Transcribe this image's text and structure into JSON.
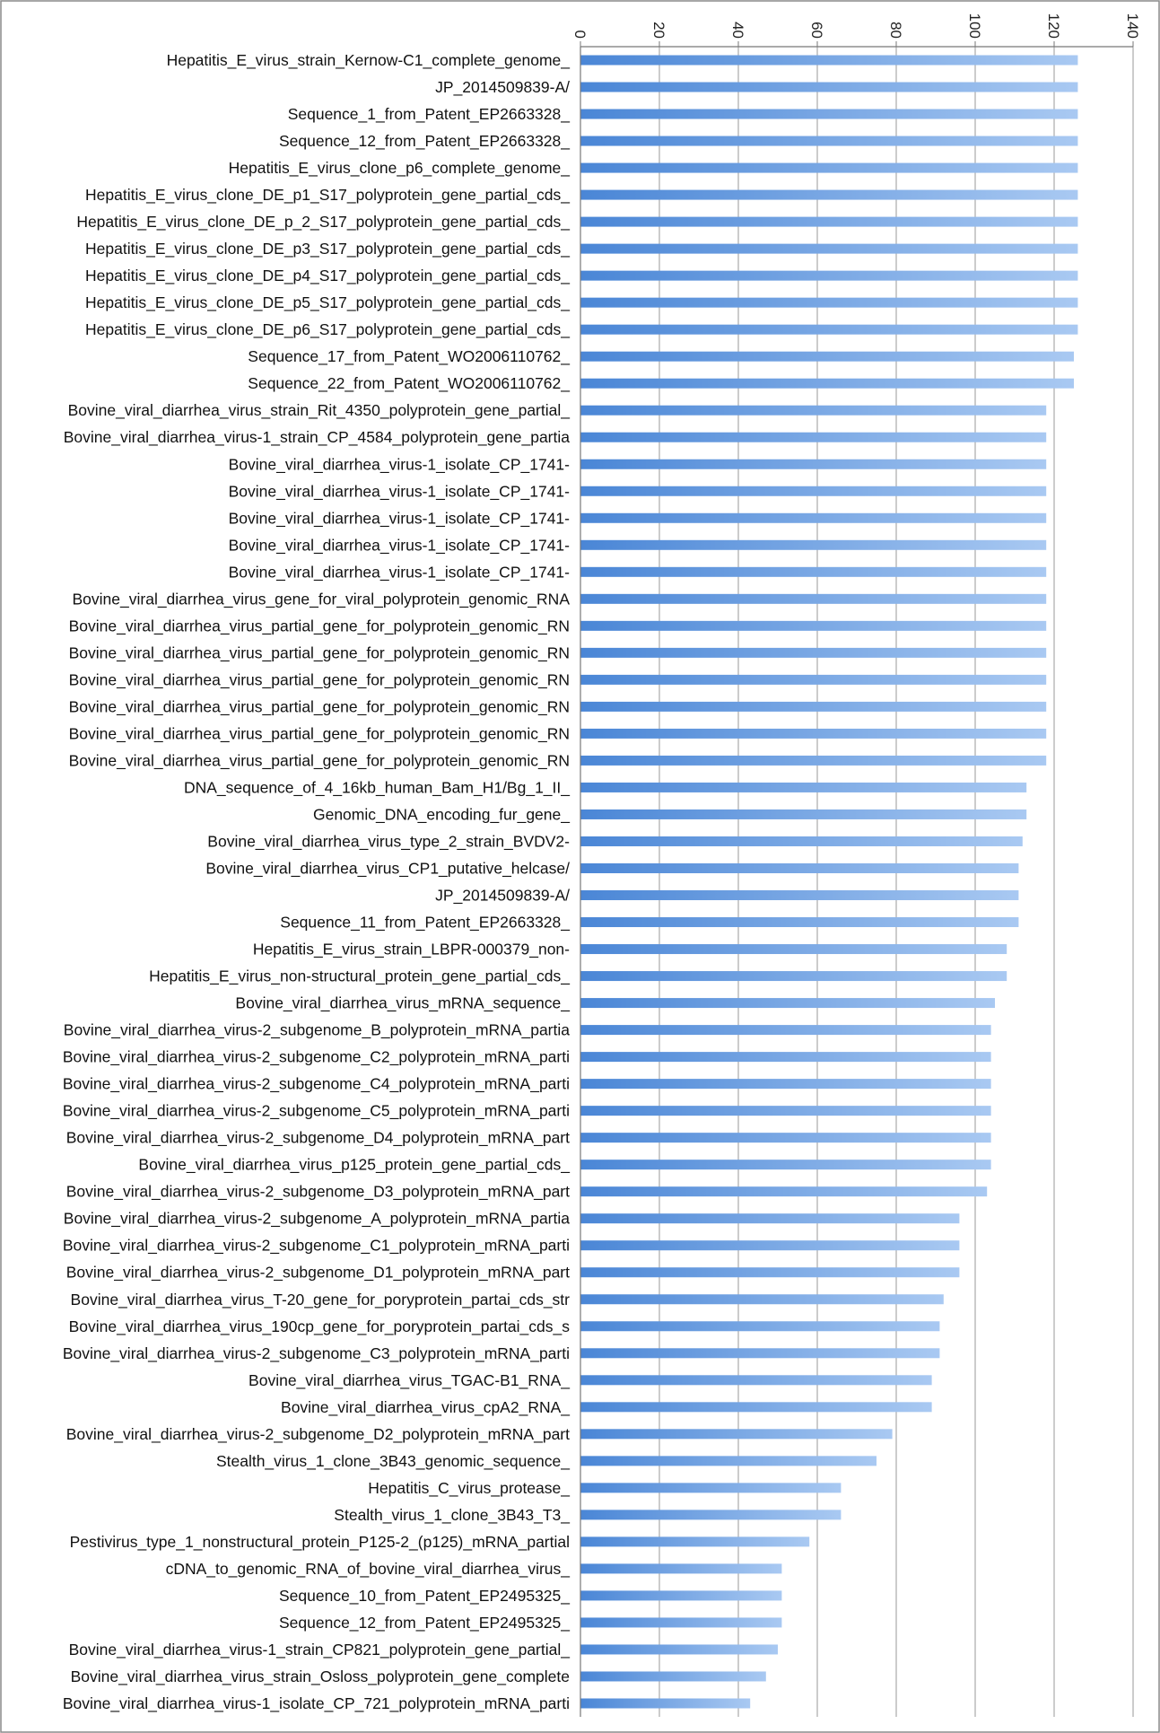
{
  "chart_data": {
    "type": "bar",
    "orientation": "horizontal",
    "xlim": [
      0,
      140
    ],
    "ticks": [
      0,
      20,
      40,
      60,
      80,
      100,
      120,
      140
    ],
    "tick_labels": [
      "0",
      "20",
      "40",
      "60",
      "80",
      "100",
      "120",
      "140"
    ],
    "grid": true,
    "axis_position": "top",
    "tick_label_rotation": 90,
    "legend": "none",
    "bar_color_start": "#4a86d6",
    "bar_color_end": "#a9c9f2",
    "categories": [
      "Hepatitis_E_virus_strain_Kernow-C1_complete_genome_",
      "JP_2014509839-A/",
      "Sequence_1_from_Patent_EP2663328_",
      "Sequence_12_from_Patent_EP2663328_",
      "Hepatitis_E_virus_clone_p6_complete_genome_",
      "Hepatitis_E_virus_clone_DE_p1_S17_polyprotein_gene_partial_cds_",
      "Hepatitis_E_virus_clone_DE_p_2_S17_polyprotein_gene_partial_cds_",
      "Hepatitis_E_virus_clone_DE_p3_S17_polyprotein_gene_partial_cds_",
      "Hepatitis_E_virus_clone_DE_p4_S17_polyprotein_gene_partial_cds_",
      "Hepatitis_E_virus_clone_DE_p5_S17_polyprotein_gene_partial_cds_",
      "Hepatitis_E_virus_clone_DE_p6_S17_polyprotein_gene_partial_cds_",
      "Sequence_17_from_Patent_WO2006110762_",
      "Sequence_22_from_Patent_WO2006110762_",
      "Bovine_viral_diarrhea_virus_strain_Rit_4350_polyprotein_gene_partial_",
      "Bovine_viral_diarrhea_virus-1_strain_CP_4584_polyprotein_gene_partia",
      "Bovine_viral_diarrhea_virus-1_isolate_CP_1741-",
      "Bovine_viral_diarrhea_virus-1_isolate_CP_1741-",
      "Bovine_viral_diarrhea_virus-1_isolate_CP_1741-",
      "Bovine_viral_diarrhea_virus-1_isolate_CP_1741-",
      "Bovine_viral_diarrhea_virus-1_isolate_CP_1741-",
      "Bovine_viral_diarrhea_virus_gene_for_viral_polyprotein_genomic_RNA",
      "Bovine_viral_diarrhea_virus_partial_gene_for_polyprotein_genomic_RN",
      "Bovine_viral_diarrhea_virus_partial_gene_for_polyprotein_genomic_RN",
      "Bovine_viral_diarrhea_virus_partial_gene_for_polyprotein_genomic_RN",
      "Bovine_viral_diarrhea_virus_partial_gene_for_polyprotein_genomic_RN",
      "Bovine_viral_diarrhea_virus_partial_gene_for_polyprotein_genomic_RN",
      "Bovine_viral_diarrhea_virus_partial_gene_for_polyprotein_genomic_RN",
      "DNA_sequence_of_4_16kb_human_Bam_H1/Bg_1_II_",
      "Genomic_DNA_encoding_fur_gene_",
      "Bovine_viral_diarrhea_virus_type_2_strain_BVDV2-",
      "Bovine_viral_diarrhea_virus_CP1_putative_helcase/",
      "JP_2014509839-A/",
      "Sequence_11_from_Patent_EP2663328_",
      "Hepatitis_E_virus_strain_LBPR-000379_non-",
      "Hepatitis_E_virus_non-structural_protein_gene_partial_cds_",
      "Bovine_viral_diarrhea_virus_mRNA_sequence_",
      "Bovine_viral_diarrhea_virus-2_subgenome_B_polyprotein_mRNA_partia",
      "Bovine_viral_diarrhea_virus-2_subgenome_C2_polyprotein_mRNA_parti",
      "Bovine_viral_diarrhea_virus-2_subgenome_C4_polyprotein_mRNA_parti",
      "Bovine_viral_diarrhea_virus-2_subgenome_C5_polyprotein_mRNA_parti",
      "Bovine_viral_diarrhea_virus-2_subgenome_D4_polyprotein_mRNA_part",
      "Bovine_viral_diarrhea_virus_p125_protein_gene_partial_cds_",
      "Bovine_viral_diarrhea_virus-2_subgenome_D3_polyprotein_mRNA_part",
      "Bovine_viral_diarrhea_virus-2_subgenome_A_polyprotein_mRNA_partia",
      "Bovine_viral_diarrhea_virus-2_subgenome_C1_polyprotein_mRNA_parti",
      "Bovine_viral_diarrhea_virus-2_subgenome_D1_polyprotein_mRNA_part",
      "Bovine_viral_diarrhea_virus_T-20_gene_for_poryprotein_partai_cds_str",
      "Bovine_viral_diarrhea_virus_190cp_gene_for_poryprotein_partai_cds_s",
      "Bovine_viral_diarrhea_virus-2_subgenome_C3_polyprotein_mRNA_parti",
      "Bovine_viral_diarrhea_virus_TGAC-B1_RNA_",
      "Bovine_viral_diarrhea_virus_cpA2_RNA_",
      "Bovine_viral_diarrhea_virus-2_subgenome_D2_polyprotein_mRNA_part",
      "Stealth_virus_1_clone_3B43_genomic_sequence_",
      "Hepatitis_C_virus_protease_",
      "Stealth_virus_1_clone_3B43_T3_",
      "Pestivirus_type_1_nonstructural_protein_P125-2_(p125)_mRNA_partial",
      "cDNA_to_genomic_RNA_of_bovine_viral_diarrhea_virus_",
      "Sequence_10_from_Patent_EP2495325_",
      "Sequence_12_from_Patent_EP2495325_",
      "Bovine_viral_diarrhea_virus-1_strain_CP821_polyprotein_gene_partial_",
      "Bovine_viral_diarrhea_virus_strain_Osloss_polyprotein_gene_complete",
      "Bovine_viral_diarrhea_virus-1_isolate_CP_721_polyprotein_mRNA_parti"
    ],
    "values": [
      126,
      126,
      126,
      126,
      126,
      126,
      126,
      126,
      126,
      126,
      126,
      125,
      125,
      118,
      118,
      118,
      118,
      118,
      118,
      118,
      118,
      118,
      118,
      118,
      118,
      118,
      118,
      113,
      113,
      112,
      111,
      111,
      111,
      108,
      108,
      105,
      104,
      104,
      104,
      104,
      104,
      104,
      103,
      96,
      96,
      96,
      92,
      91,
      91,
      89,
      89,
      79,
      75,
      66,
      66,
      58,
      51,
      51,
      51,
      50,
      47,
      43
    ]
  }
}
